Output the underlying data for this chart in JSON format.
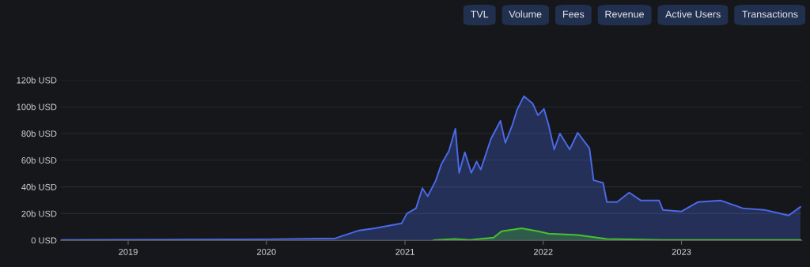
{
  "chart_data": {
    "type": "area",
    "x": [
      "2018-07-07",
      "2019-01-01",
      "2020-01-01",
      "2020-07-01",
      "2020-09-02",
      "2020-10-13",
      "2020-12-23",
      "2021-01-06",
      "2021-01-30",
      "2021-02-16",
      "2021-03-02",
      "2021-03-23",
      "2021-04-07",
      "2021-04-27",
      "2021-05-14",
      "2021-05-24",
      "2021-06-08",
      "2021-06-25",
      "2021-07-09",
      "2021-07-20",
      "2021-08-16",
      "2021-09-10",
      "2021-09-23",
      "2021-10-11",
      "2021-10-24",
      "2021-11-11",
      "2021-12-04",
      "2021-12-18",
      "2022-01-03",
      "2022-01-15",
      "2022-01-30",
      "2022-02-14",
      "2022-03-12",
      "2022-04-02",
      "2022-05-03",
      "2022-05-14",
      "2022-06-08",
      "2022-06-18",
      "2022-07-15",
      "2022-08-16",
      "2022-09-16",
      "2022-11-03",
      "2022-11-13",
      "2023-01-01",
      "2023-02-14",
      "2023-04-15",
      "2023-06-12",
      "2023-08-08",
      "2023-10-11",
      "2023-11-11"
    ],
    "series": [
      {
        "color": "#4a6ae8",
        "values": [
          0.3,
          0.4,
          0.8,
          1.5,
          7.4,
          9,
          12.7,
          20,
          24,
          39,
          33,
          44.6,
          57,
          67,
          83.6,
          50.5,
          66,
          50.5,
          59,
          53,
          76,
          89.5,
          73,
          86,
          97.8,
          107.9,
          102.5,
          93.7,
          98.4,
          86.6,
          68,
          80,
          68,
          80.6,
          69,
          45,
          43,
          28.7,
          28.7,
          35.8,
          29.8,
          29.8,
          22.8,
          21.6,
          28.7,
          29.8,
          24,
          22.8,
          18.6,
          25
        ]
      },
      {
        "color": "#48c22c",
        "x": [
          "2021-03-18",
          "2021-05-11",
          "2021-06-21",
          "2021-08-23",
          "2021-09-13",
          "2021-11-05",
          "2021-12-18",
          "2022-01-15",
          "2022-04-02",
          "2022-06-18",
          "2022-11-10",
          "2023-11-11"
        ],
        "values": [
          0.2,
          1,
          0.3,
          2,
          6.8,
          9,
          6.8,
          5,
          4,
          1,
          0.3,
          0.3
        ]
      }
    ],
    "xlim": [
      "2018-07-07",
      "2023-11-15"
    ],
    "xticks": [
      {
        "value": "2019-01-01",
        "label": "2019"
      },
      {
        "value": "2020-01-01",
        "label": "2020"
      },
      {
        "value": "2021-01-01",
        "label": "2021"
      },
      {
        "value": "2022-01-01",
        "label": "2022"
      },
      {
        "value": "2023-01-01",
        "label": "2023"
      }
    ],
    "ylim": [
      0,
      120
    ],
    "yticks": [
      {
        "value": 0,
        "label": "0 USD"
      },
      {
        "value": 20,
        "label": "20b USD"
      },
      {
        "value": 40,
        "label": "40b USD"
      },
      {
        "value": 60,
        "label": "60b USD"
      },
      {
        "value": 80,
        "label": "80b USD"
      },
      {
        "value": 100,
        "label": "100b USD"
      },
      {
        "value": 120,
        "label": "120b USD"
      }
    ],
    "grid": "y",
    "annotations": [
      "TVL",
      "Volume",
      "Fees",
      "Revenue",
      "Active Users",
      "Transactions"
    ]
  }
}
